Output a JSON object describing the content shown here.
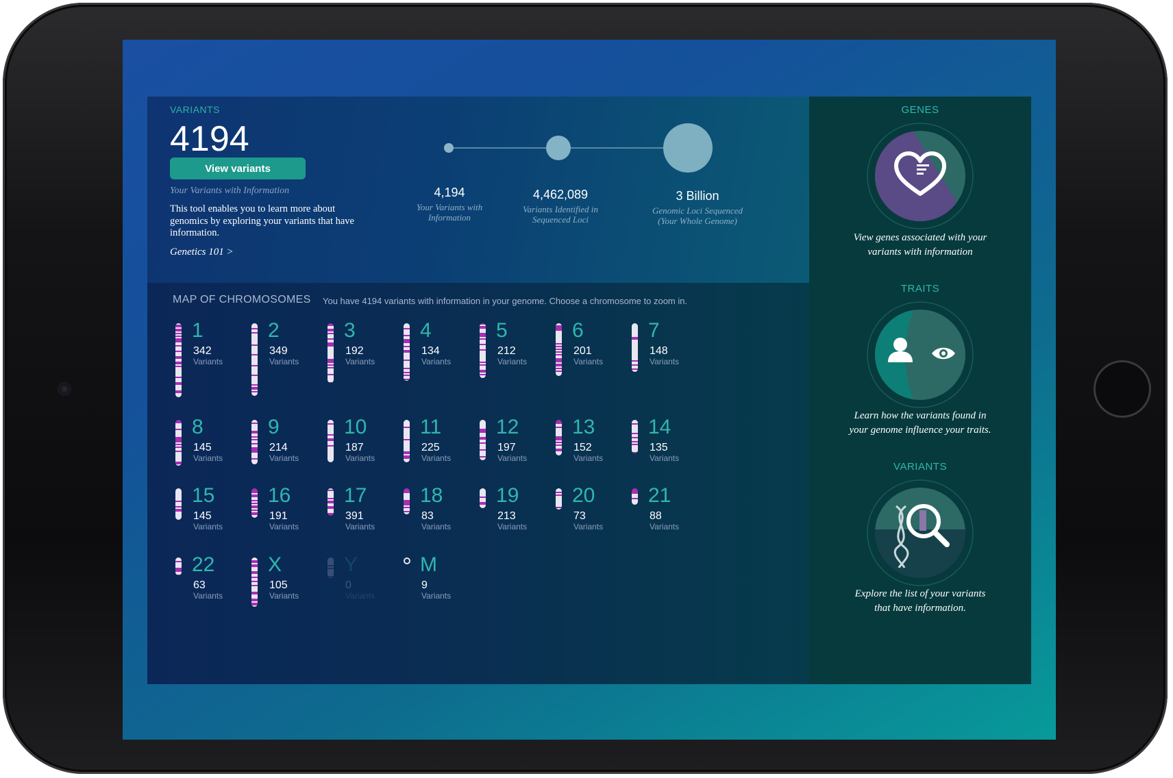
{
  "summary": {
    "label": "VARIANTS",
    "count": "4194",
    "button_label": "View variants",
    "subcaption": "Your Variants with Information",
    "description": "This tool enables you to learn more about genomics by exploring your variants that have information.",
    "link": "Genetics 101 >"
  },
  "stats": [
    {
      "value": "4,194",
      "caption_1": "Your Variants with",
      "caption_2": "Information"
    },
    {
      "value": "4,462,089",
      "caption_1": "Variants Identified in",
      "caption_2": "Sequenced Loci"
    },
    {
      "value": "3 Billion",
      "caption_1": "Genomic Loci Sequenced",
      "caption_2": "(Your Whole Genome)"
    }
  ],
  "map": {
    "title": "MAP OF CHROMOSOMES",
    "subtitle": "You have 4194 variants with information in your genome. Choose a chromosome to zoom in.",
    "unit_label": "Variants",
    "chromosomes": [
      {
        "name": "1",
        "count": "342",
        "length": 1.0
      },
      {
        "name": "2",
        "count": "349",
        "length": 0.98
      },
      {
        "name": "3",
        "count": "192",
        "length": 0.81
      },
      {
        "name": "4",
        "count": "134",
        "length": 0.78
      },
      {
        "name": "5",
        "count": "212",
        "length": 0.74
      },
      {
        "name": "6",
        "count": "201",
        "length": 0.71
      },
      {
        "name": "7",
        "count": "148",
        "length": 0.66
      },
      {
        "name": "8",
        "count": "145",
        "length": 0.62
      },
      {
        "name": "9",
        "count": "214",
        "length": 0.6
      },
      {
        "name": "10",
        "count": "187",
        "length": 0.57
      },
      {
        "name": "11",
        "count": "225",
        "length": 0.57
      },
      {
        "name": "12",
        "count": "197",
        "length": 0.55
      },
      {
        "name": "13",
        "count": "152",
        "length": 0.48
      },
      {
        "name": "14",
        "count": "135",
        "length": 0.45
      },
      {
        "name": "15",
        "count": "145",
        "length": 0.43
      },
      {
        "name": "16",
        "count": "191",
        "length": 0.4
      },
      {
        "name": "17",
        "count": "391",
        "length": 0.37
      },
      {
        "name": "18",
        "count": "83",
        "length": 0.35
      },
      {
        "name": "19",
        "count": "213",
        "length": 0.27
      },
      {
        "name": "20",
        "count": "73",
        "length": 0.29
      },
      {
        "name": "21",
        "count": "88",
        "length": 0.22
      },
      {
        "name": "22",
        "count": "63",
        "length": 0.24
      },
      {
        "name": "X",
        "count": "105",
        "length": 0.67
      },
      {
        "name": "Y",
        "count": "0",
        "length": 0.28
      },
      {
        "name": "M",
        "count": "9",
        "length": 0.05
      }
    ]
  },
  "sidebar": {
    "genes": {
      "title": "GENES",
      "caption_1": "View genes associated with your",
      "caption_2": "variants with information",
      "icon": "heart-icon"
    },
    "traits": {
      "title": "TRAITS",
      "caption_1": "Learn how the variants found in",
      "caption_2": "your genome influence your traits.",
      "icon": "person-eye-icon"
    },
    "variants": {
      "title": "VARIANTS",
      "caption_1": "Explore the list of your variants",
      "caption_2": "that have information.",
      "icon": "dna-magnifier-icon"
    }
  },
  "colors": {
    "accent": "#2fb7ad",
    "button": "#1d9a8c",
    "band_purple": "#a62fb3",
    "band_white": "#e8e6f0"
  }
}
